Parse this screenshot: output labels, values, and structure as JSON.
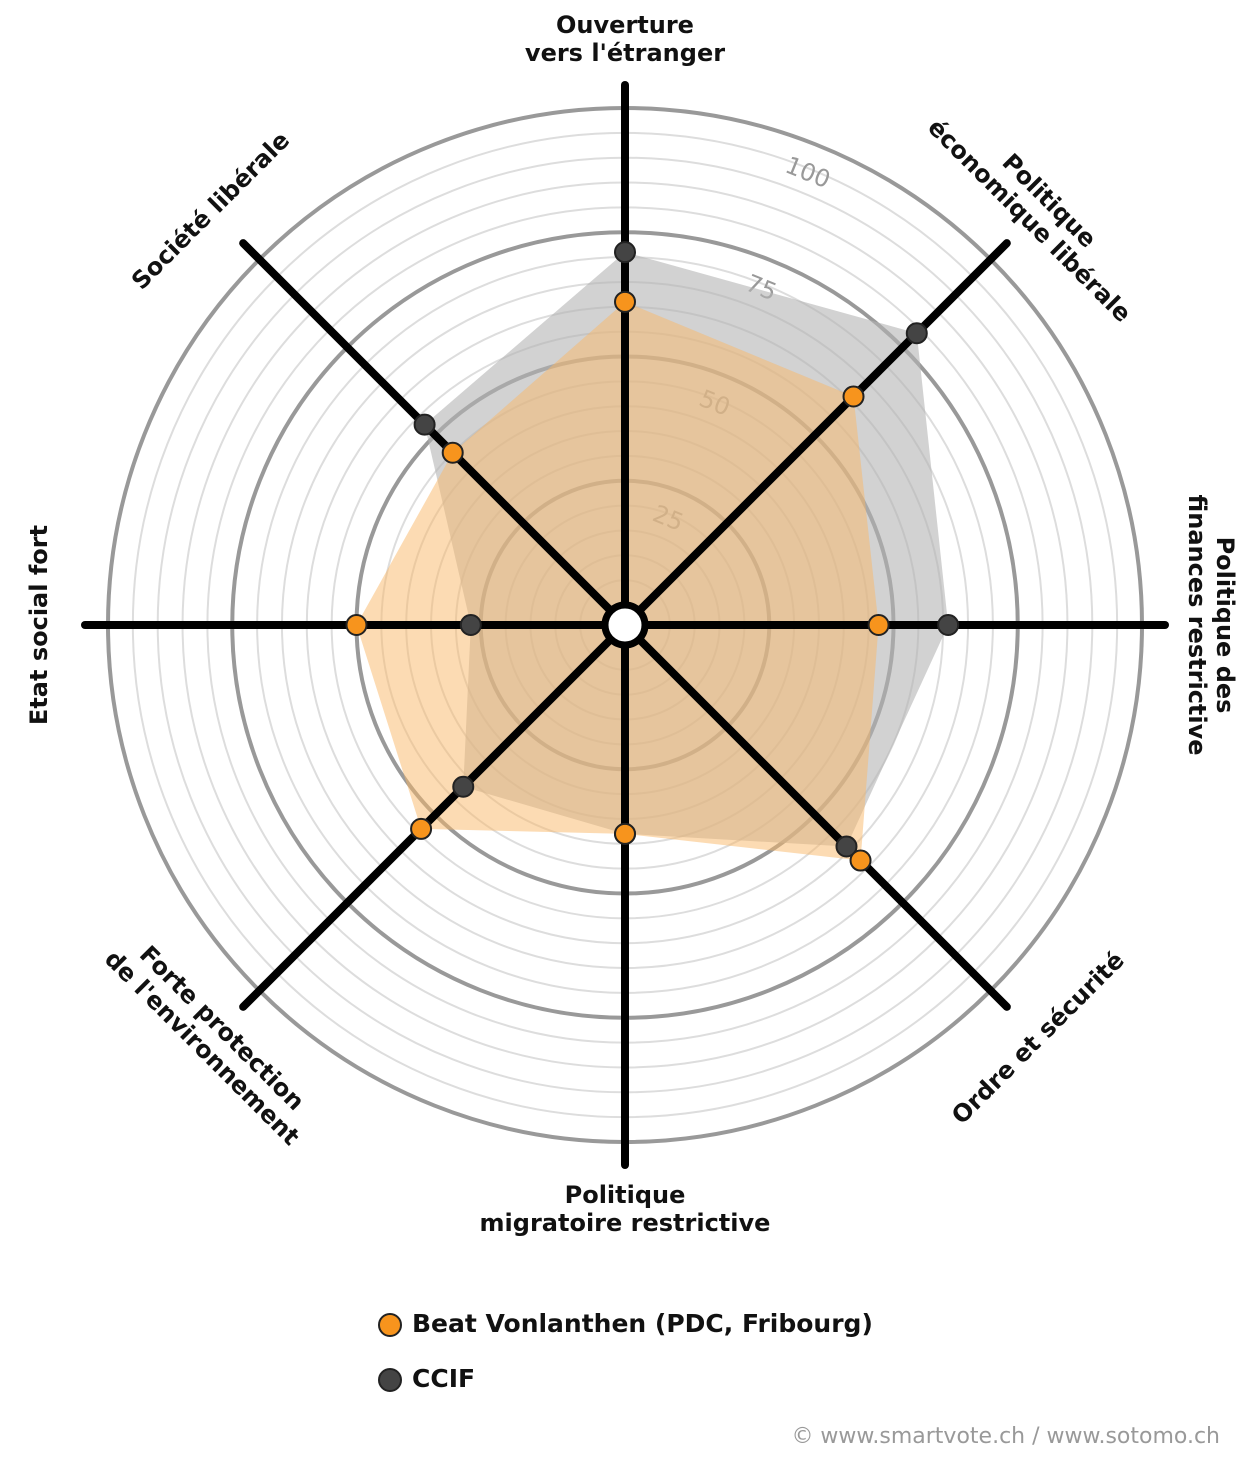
{
  "chart_data": {
    "type": "radar",
    "categories": [
      [
        "Ouverture",
        "vers l'étranger"
      ],
      [
        "Politique",
        "économique libérale"
      ],
      [
        "Politique des",
        "finances restrictive"
      ],
      [
        "Ordre et sécurité"
      ],
      [
        "Politique",
        "migratoire restrictive"
      ],
      [
        "Forte protection",
        "de l'environnement"
      ],
      [
        "Etat social fort"
      ],
      [
        "Société libérale"
      ]
    ],
    "series": [
      {
        "name": "CCIF",
        "color": "#444444",
        "fill": "#b4b4b4",
        "values": [
          71,
          79,
          61,
          59,
          38,
          42,
          27,
          53
        ]
      },
      {
        "name": "Beat Vonlanthen (PDC, Fribourg)",
        "color": "#f7941d",
        "fill": "#f9b868",
        "values": [
          61,
          61,
          47,
          63,
          38,
          54,
          50,
          45
        ]
      }
    ],
    "rlim": [
      0,
      100
    ],
    "rticks": [
      25,
      50,
      75,
      100
    ],
    "minor_rticks": [
      5,
      10,
      15,
      20,
      30,
      35,
      40,
      45,
      55,
      60,
      65,
      70,
      80,
      85,
      90,
      95
    ],
    "source": "© www.smartvote.ch / www.sotomo.ch"
  }
}
